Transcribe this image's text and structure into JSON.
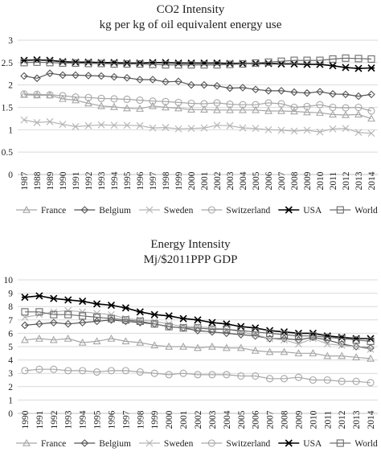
{
  "chart_data": [
    {
      "type": "line",
      "title": "CO2 Intensity",
      "subtitle": "kg per kg of oil equivalent energy use",
      "categories": [
        "1987",
        "1988",
        "1989",
        "1990",
        "1991",
        "1992",
        "1993",
        "1994",
        "1995",
        "1996",
        "1997",
        "1998",
        "1999",
        "2000",
        "2001",
        "2002",
        "2003",
        "2004",
        "2005",
        "2006",
        "2007",
        "2008",
        "2009",
        "2010",
        "2011",
        "2012",
        "2013",
        "2014"
      ],
      "ylim": [
        0,
        3
      ],
      "yticks": [
        "0",
        "0.5",
        "1",
        "1.5",
        "2",
        "2.5",
        "3"
      ],
      "grid": true,
      "legend_position": "bottom",
      "series": [
        {
          "name": "France",
          "color": "#a6a6a6",
          "marker": "triangle",
          "values": [
            1.78,
            1.77,
            1.77,
            1.69,
            1.66,
            1.59,
            1.53,
            1.51,
            1.48,
            1.47,
            1.53,
            1.5,
            1.48,
            1.45,
            1.45,
            1.44,
            1.44,
            1.44,
            1.44,
            1.42,
            1.42,
            1.41,
            1.39,
            1.38,
            1.34,
            1.33,
            1.34,
            1.25
          ]
        },
        {
          "name": "Belgium",
          "color": "#555555",
          "marker": "diamond",
          "values": [
            2.2,
            2.15,
            2.26,
            2.22,
            2.22,
            2.21,
            2.2,
            2.18,
            2.16,
            2.12,
            2.12,
            2.07,
            2.08,
            2.0,
            2.0,
            1.98,
            1.93,
            1.94,
            1.9,
            1.87,
            1.87,
            1.84,
            1.82,
            1.85,
            1.8,
            1.79,
            1.75,
            1.79
          ]
        },
        {
          "name": "Sweden",
          "color": "#b3b3b3",
          "marker": "x",
          "values": [
            1.22,
            1.16,
            1.18,
            1.12,
            1.07,
            1.09,
            1.11,
            1.1,
            1.1,
            1.09,
            1.04,
            1.05,
            1.02,
            1.03,
            1.04,
            1.1,
            1.09,
            1.04,
            1.03,
            1.0,
            0.99,
            0.97,
            0.99,
            0.95,
            1.02,
            1.03,
            0.94,
            0.92
          ]
        },
        {
          "name": "Switzerland",
          "color": "#a6a6a6",
          "marker": "circle",
          "values": [
            1.8,
            1.79,
            1.78,
            1.76,
            1.73,
            1.72,
            1.7,
            1.69,
            1.68,
            1.66,
            1.64,
            1.63,
            1.61,
            1.59,
            1.58,
            1.6,
            1.57,
            1.56,
            1.56,
            1.6,
            1.58,
            1.5,
            1.52,
            1.56,
            1.5,
            1.49,
            1.5,
            1.42
          ]
        },
        {
          "name": "USA",
          "color": "#000000",
          "marker": "star",
          "values": [
            2.55,
            2.56,
            2.55,
            2.52,
            2.51,
            2.51,
            2.5,
            2.5,
            2.49,
            2.49,
            2.5,
            2.5,
            2.49,
            2.49,
            2.49,
            2.49,
            2.48,
            2.48,
            2.48,
            2.48,
            2.47,
            2.47,
            2.46,
            2.46,
            2.43,
            2.39,
            2.37,
            2.38
          ]
        },
        {
          "name": "World",
          "color": "#6b6b6b",
          "marker": "square",
          "values": [
            2.5,
            2.51,
            2.5,
            2.49,
            2.49,
            2.48,
            2.48,
            2.47,
            2.47,
            2.47,
            2.46,
            2.45,
            2.45,
            2.45,
            2.45,
            2.45,
            2.46,
            2.47,
            2.49,
            2.51,
            2.53,
            2.55,
            2.55,
            2.55,
            2.58,
            2.6,
            2.59,
            2.58
          ]
        }
      ]
    },
    {
      "type": "line",
      "title": "Energy Intensity",
      "subtitle": "Mj/$2011PPP GDP",
      "categories": [
        "1990",
        "1991",
        "1992",
        "1993",
        "1994",
        "1995",
        "1996",
        "1997",
        "1998",
        "1999",
        "2000",
        "2001",
        "2002",
        "2003",
        "2004",
        "2005",
        "2006",
        "2007",
        "2008",
        "2009",
        "2010",
        "2011",
        "2012",
        "2013",
        "2014"
      ],
      "ylim": [
        0,
        10
      ],
      "yticks": [
        "0",
        "1",
        "2",
        "3",
        "4",
        "5",
        "6",
        "7",
        "8",
        "9",
        "10"
      ],
      "grid": true,
      "legend_position": "bottom",
      "series": [
        {
          "name": "France",
          "color": "#a6a6a6",
          "marker": "triangle",
          "values": [
            5.5,
            5.6,
            5.5,
            5.6,
            5.3,
            5.4,
            5.6,
            5.4,
            5.3,
            5.1,
            5.0,
            5.0,
            4.9,
            5.0,
            4.9,
            4.9,
            4.7,
            4.6,
            4.6,
            4.5,
            4.5,
            4.3,
            4.3,
            4.2,
            4.1
          ]
        },
        {
          "name": "Belgium",
          "color": "#555555",
          "marker": "diamond",
          "values": [
            6.6,
            6.7,
            6.8,
            6.7,
            6.8,
            6.9,
            7.0,
            6.9,
            6.8,
            6.7,
            6.5,
            6.4,
            6.2,
            6.1,
            6.0,
            5.9,
            5.8,
            5.6,
            5.6,
            5.5,
            5.7,
            5.5,
            5.2,
            5.0,
            4.9
          ]
        },
        {
          "name": "Sweden",
          "color": "#b3b3b3",
          "marker": "x",
          "values": [
            7.2,
            7.4,
            7.6,
            7.7,
            7.6,
            7.5,
            7.4,
            7.1,
            7.0,
            6.9,
            6.7,
            6.5,
            6.5,
            6.4,
            6.3,
            6.1,
            5.9,
            5.6,
            5.5,
            5.2,
            5.6,
            5.2,
            5.1,
            5.0,
            4.8
          ]
        },
        {
          "name": "Switzerland",
          "color": "#a6a6a6",
          "marker": "circle",
          "values": [
            3.2,
            3.3,
            3.3,
            3.2,
            3.2,
            3.1,
            3.2,
            3.2,
            3.1,
            3.0,
            2.9,
            3.0,
            2.9,
            2.9,
            2.9,
            2.8,
            2.8,
            2.6,
            2.6,
            2.7,
            2.5,
            2.5,
            2.4,
            2.4,
            2.3
          ]
        },
        {
          "name": "USA",
          "color": "#000000",
          "marker": "star",
          "values": [
            8.7,
            8.8,
            8.6,
            8.5,
            8.4,
            8.2,
            8.1,
            7.9,
            7.6,
            7.4,
            7.3,
            7.1,
            7.0,
            6.8,
            6.7,
            6.5,
            6.4,
            6.2,
            6.1,
            6.0,
            6.0,
            5.8,
            5.7,
            5.6,
            5.6
          ]
        },
        {
          "name": "World",
          "color": "#6b6b6b",
          "marker": "square",
          "values": [
            7.6,
            7.6,
            7.4,
            7.4,
            7.3,
            7.2,
            7.1,
            7.0,
            6.9,
            6.7,
            6.5,
            6.4,
            6.4,
            6.3,
            6.3,
            6.2,
            6.1,
            6.0,
            5.9,
            5.8,
            5.8,
            5.7,
            5.6,
            5.5,
            5.4
          ]
        }
      ]
    }
  ]
}
